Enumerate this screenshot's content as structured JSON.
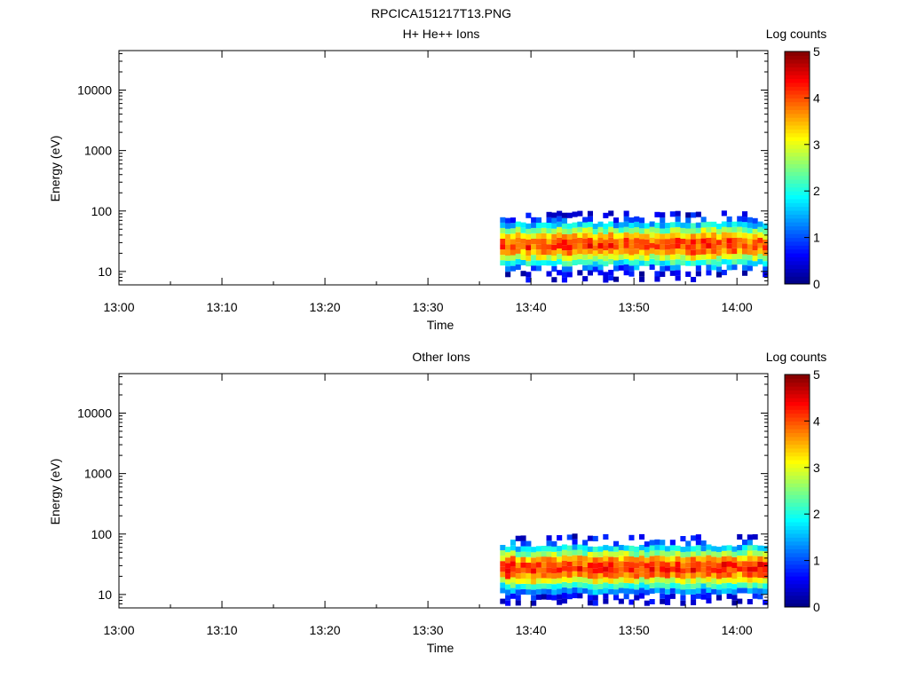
{
  "figure": {
    "title": "RPCICA151217T13.PNG"
  },
  "colors": {
    "colormap": [
      "#00007f",
      "#0000ff",
      "#007fff",
      "#00ffff",
      "#7fff7f",
      "#ffff00",
      "#ff7f00",
      "#ff0000",
      "#7f0000"
    ]
  },
  "chart_data": [
    {
      "type": "heatmap",
      "title": "H+ He++ Ions",
      "xlabel": "Time",
      "ylabel": "Energy (eV)",
      "xlim": [
        "13:00",
        "14:03"
      ],
      "ylim": [
        6,
        45000
      ],
      "yscale": "log",
      "x_ticks": [
        "13:00",
        "13:10",
        "13:20",
        "13:30",
        "13:40",
        "13:50",
        "14:00"
      ],
      "y_ticks": [
        "10",
        "100",
        "1000",
        "10000"
      ],
      "colorbar": {
        "label": "Log counts",
        "range": [
          0,
          5
        ],
        "ticks": [
          "0",
          "1",
          "2",
          "3",
          "4",
          "5"
        ]
      },
      "data_time_range": [
        "13:37",
        "14:03"
      ],
      "energy_bins_eV": [
        7.5,
        9.2,
        11.3,
        13.9,
        17.0,
        20.9,
        25.6,
        31.4,
        38.6,
        47.3,
        58.1,
        71.3,
        87.5
      ],
      "log_counts_profile": [
        0.3,
        0.6,
        1.2,
        2.0,
        2.9,
        3.7,
        4.1,
        4.0,
        3.4,
        2.6,
        1.7,
        1.0,
        0.4
      ],
      "peak_energy_eV": 27,
      "peak_log_counts": 4.2
    },
    {
      "type": "heatmap",
      "title": "Other Ions",
      "xlabel": "Time",
      "ylabel": "Energy (eV)",
      "xlim": [
        "13:00",
        "14:03"
      ],
      "ylim": [
        6,
        45000
      ],
      "yscale": "log",
      "x_ticks": [
        "13:00",
        "13:10",
        "13:20",
        "13:30",
        "13:40",
        "13:50",
        "14:00"
      ],
      "y_ticks": [
        "10",
        "100",
        "1000",
        "10000"
      ],
      "colorbar": {
        "label": "Log counts",
        "range": [
          0,
          5
        ],
        "ticks": [
          "0",
          "1",
          "2",
          "3",
          "4",
          "5"
        ]
      },
      "data_time_range": [
        "13:37",
        "14:03"
      ],
      "energy_bins_eV": [
        7.5,
        9.2,
        11.3,
        13.9,
        17.0,
        20.9,
        25.6,
        31.4,
        38.6,
        47.3,
        58.1,
        71.3,
        87.5
      ],
      "log_counts_profile": [
        0.3,
        0.6,
        1.3,
        2.1,
        3.0,
        3.8,
        4.2,
        4.1,
        3.5,
        2.7,
        1.8,
        1.1,
        0.5
      ],
      "peak_energy_eV": 27,
      "peak_log_counts": 4.3
    }
  ]
}
